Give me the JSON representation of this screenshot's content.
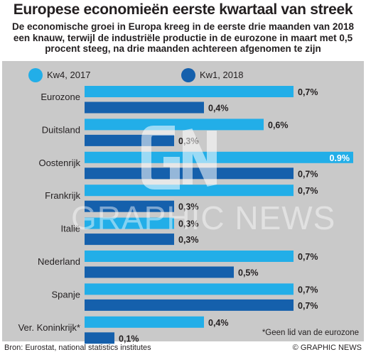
{
  "header": {
    "title": "Europese economieën eerste kwartaal van streek",
    "subtitle": "De economische groei in Europa kreeg in de eerste drie maanden van 2018 een knauw, terwijl de industriële productie in de eurozone in maart met 0,5 procent steeg, na drie maanden achtereen afgenomen te zijn"
  },
  "footer": {
    "source": "Bron: Eurostat, national statistics institutes",
    "credit": "© GRAPHIC NEWS",
    "footnote": "*Geen lid van de eurozone"
  },
  "watermark": "GRAPHIC NEWS",
  "colors": {
    "q4": "#22aee8",
    "q1": "#1560ac",
    "panel": "#c9c9c9"
  },
  "chart_data": {
    "type": "bar",
    "orientation": "horizontal",
    "categories": [
      "Eurozone",
      "Duitsland",
      "Oostenrijk",
      "Frankrijk",
      "Italië",
      "Nederland",
      "Spanje",
      "Ver. Koninkrijk*"
    ],
    "series": [
      {
        "name": "Kw4, 2017",
        "values": [
          0.7,
          0.6,
          0.9,
          0.7,
          0.3,
          0.7,
          0.7,
          0.4
        ],
        "labels": [
          "0,7%",
          "0,6%",
          "0.9%",
          "0,7%",
          "0,3%",
          "0,7%",
          "0,7%",
          "0,4%"
        ]
      },
      {
        "name": "Kw1, 2018",
        "values": [
          0.4,
          0.3,
          0.7,
          0.3,
          0.3,
          0.5,
          0.7,
          0.1
        ],
        "labels": [
          "0,4%",
          "0,3%",
          "0,7%",
          "0,3%",
          "0,3%",
          "0,5%",
          "0,7%",
          "0,1%"
        ]
      }
    ],
    "xlim": [
      0,
      0.9
    ],
    "grid": false,
    "legend": "top"
  }
}
